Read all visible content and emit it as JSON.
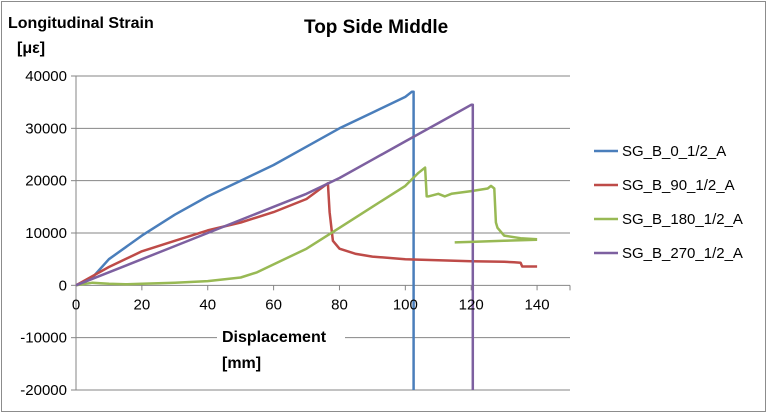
{
  "chart_data": {
    "type": "line",
    "title": "Top Side Middle",
    "ylabel_line1": "Longitudinal  Strain",
    "ylabel_line2": "[με]",
    "xlabel_line1": "Displacement",
    "xlabel_line2": "[mm]",
    "xlim": [
      0,
      150
    ],
    "ylim": [
      -20000,
      40000
    ],
    "xticks": [
      0,
      20,
      40,
      60,
      80,
      100,
      120,
      140
    ],
    "yticks": [
      -20000,
      -10000,
      0,
      10000,
      20000,
      30000,
      40000
    ],
    "grid": "horizontal",
    "legend_position": "right",
    "series": [
      {
        "name": "SG_B_0_1/2_A",
        "color": "#4a7ebb",
        "x": [
          0,
          5,
          10,
          20,
          30,
          40,
          50,
          60,
          70,
          80,
          90,
          100,
          102,
          102.5,
          102.5
        ],
        "y": [
          0,
          1500,
          5000,
          9500,
          13500,
          17000,
          20000,
          23000,
          26500,
          30000,
          33000,
          36000,
          37000,
          37000,
          -20000
        ]
      },
      {
        "name": "SG_B_90_1/2_A",
        "color": "#be4b48",
        "x": [
          0,
          10,
          20,
          30,
          40,
          50,
          60,
          70,
          76.5,
          77,
          78,
          80,
          85,
          90,
          100,
          110,
          120,
          130,
          133,
          135,
          135.5,
          140
        ],
        "y": [
          0,
          3500,
          6500,
          8500,
          10500,
          12000,
          14000,
          16500,
          19500,
          14000,
          8500,
          7000,
          6000,
          5500,
          5000,
          4800,
          4600,
          4500,
          4400,
          4300,
          3600,
          3600
        ]
      },
      {
        "name": "SG_B_180_1/2_A",
        "color": "#98b954",
        "x": [
          0,
          5,
          10,
          15,
          20,
          30,
          40,
          50,
          55,
          60,
          70,
          80,
          90,
          100,
          104,
          106,
          106.5,
          107,
          110,
          112,
          114,
          120,
          125,
          126,
          127,
          127.5,
          128,
          130,
          135,
          140
        ],
        "y": [
          0,
          500,
          300,
          200,
          300,
          500,
          800,
          1500,
          2500,
          4000,
          7000,
          11000,
          15000,
          19000,
          21500,
          22500,
          17000,
          17000,
          17500,
          17000,
          17500,
          18000,
          18500,
          19000,
          18500,
          12000,
          11000,
          9500,
          9000,
          8800
        ]
      },
      {
        "name": "SG_B_270_1/2_A",
        "color": "#7d60a0",
        "x": [
          0,
          10,
          20,
          30,
          40,
          50,
          60,
          70,
          80,
          90,
          100,
          110,
          120,
          120.5,
          120.5
        ],
        "y": [
          0,
          2500,
          5000,
          7500,
          10000,
          12500,
          15000,
          17500,
          20500,
          24000,
          27500,
          31000,
          34500,
          34500,
          -20000
        ]
      }
    ],
    "series_extra": [
      {
        "series": "SG_B_180_1/2_A",
        "x": [
          115,
          120,
          130,
          140
        ],
        "y": [
          8200,
          8300,
          8500,
          8700
        ]
      }
    ]
  }
}
